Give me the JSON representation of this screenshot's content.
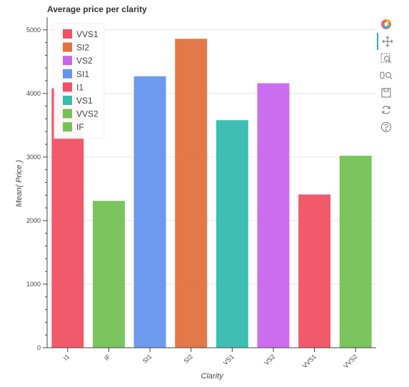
{
  "chart_data": {
    "type": "bar",
    "title": "Average price per clarity",
    "xlabel": "Clarity",
    "ylabel": "Mean( Price )",
    "categories": [
      "I1",
      "IF",
      "SI1",
      "SI2",
      "VS1",
      "VS2",
      "VVS1",
      "VVS2"
    ],
    "values": [
      4080,
      2310,
      4270,
      4860,
      3580,
      4160,
      2410,
      3020
    ],
    "colors": [
      "#f05163",
      "#75c155",
      "#6495ed",
      "#e2723f",
      "#33bdaf",
      "#c965ee",
      "#f05163",
      "#75c155"
    ],
    "ylim": [
      0,
      5200
    ],
    "yticks": [
      0,
      1000,
      2000,
      3000,
      4000,
      5000
    ],
    "grid": true,
    "legend_position": "top-left",
    "legend": [
      {
        "label": "VVS1",
        "color": "#f05163"
      },
      {
        "label": "SI2",
        "color": "#e2723f"
      },
      {
        "label": "VS2",
        "color": "#c965ee"
      },
      {
        "label": "SI1",
        "color": "#6495ed"
      },
      {
        "label": "I1",
        "color": "#f05163"
      },
      {
        "label": "VS1",
        "color": "#33bdaf"
      },
      {
        "label": "VVS2",
        "color": "#75c155"
      },
      {
        "label": "IF",
        "color": "#75c155"
      }
    ]
  },
  "toolbar": {
    "tools": [
      "bokeh-logo-icon",
      "pan-icon",
      "box-zoom-icon",
      "wheel-zoom-icon",
      "save-icon",
      "reset-icon",
      "help-icon"
    ]
  }
}
